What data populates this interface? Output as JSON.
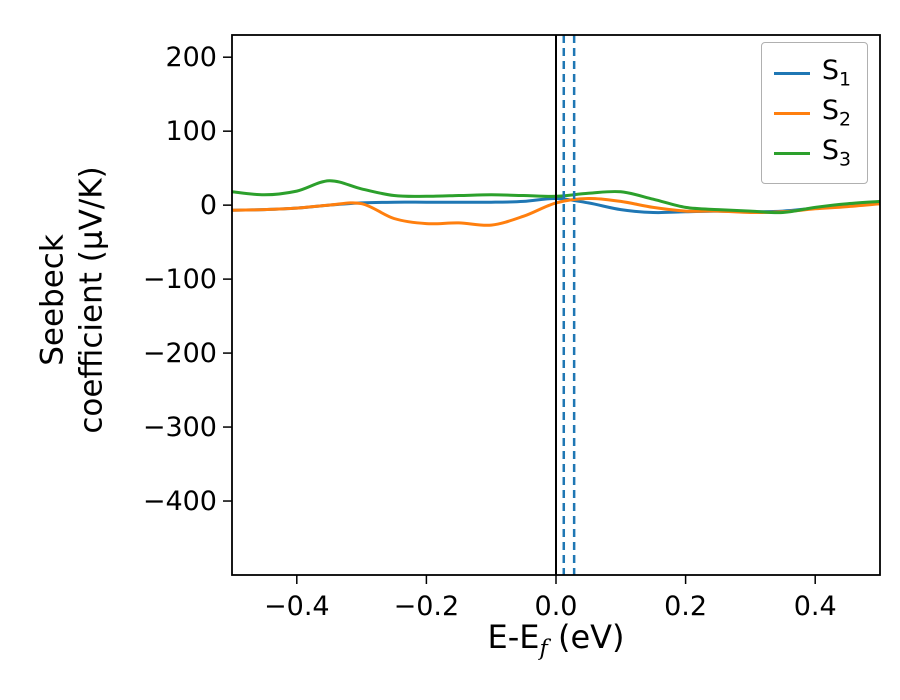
{
  "figure": {
    "background": "#ffffff"
  },
  "chart_data": {
    "type": "line",
    "title": "",
    "xlabel_parts": {
      "main": "E-E",
      "sub": "f",
      "unit": " (eV)"
    },
    "ylabel_lines": [
      "Seebeck",
      "coefficient  (μV/K)"
    ],
    "xlim": [
      -0.5,
      0.5
    ],
    "ylim": [
      -500,
      230
    ],
    "grid": false,
    "legend_position": "upper right",
    "xticks": [
      {
        "v": -0.4,
        "label": "−0.4"
      },
      {
        "v": -0.2,
        "label": "−0.2"
      },
      {
        "v": 0.0,
        "label": "0.0"
      },
      {
        "v": 0.2,
        "label": "0.2"
      },
      {
        "v": 0.4,
        "label": "0.4"
      }
    ],
    "yticks": [
      {
        "v": 200,
        "label": "200"
      },
      {
        "v": 100,
        "label": "100"
      },
      {
        "v": 0,
        "label": "0"
      },
      {
        "v": -100,
        "label": "−100"
      },
      {
        "v": -200,
        "label": "−200"
      },
      {
        "v": -300,
        "label": "−300"
      },
      {
        "v": -400,
        "label": "−400"
      }
    ],
    "x": [
      -0.5,
      -0.45,
      -0.4,
      -0.35,
      -0.3,
      -0.25,
      -0.2,
      -0.15,
      -0.1,
      -0.05,
      0.0,
      0.05,
      0.1,
      0.15,
      0.2,
      0.25,
      0.3,
      0.35,
      0.4,
      0.45,
      0.5
    ],
    "series": [
      {
        "name": "S",
        "sub": "1",
        "color": "#1f77b4",
        "values": [
          -7,
          -6,
          -4,
          0,
          3,
          4,
          4,
          4,
          4,
          5,
          9,
          3,
          -6,
          -10,
          -9,
          -8,
          -9,
          -8,
          -4,
          -1,
          3
        ]
      },
      {
        "name": "S",
        "sub": "2",
        "color": "#ff7f0e",
        "values": [
          -7,
          -6,
          -4,
          0,
          2,
          -18,
          -25,
          -24,
          -27,
          -15,
          3,
          9,
          5,
          -3,
          -8,
          -8,
          -10,
          -9,
          -5,
          -2,
          2
        ]
      },
      {
        "name": "S",
        "sub": "3",
        "color": "#2ca02c",
        "values": [
          18,
          14,
          19,
          33,
          22,
          13,
          12,
          13,
          14,
          13,
          12,
          16,
          18,
          8,
          -3,
          -6,
          -8,
          -10,
          -3,
          2,
          5
        ]
      }
    ],
    "vlines": [
      {
        "x": 0.0,
        "color": "#000000",
        "style": "solid",
        "width": 2
      },
      {
        "x": 0.012,
        "color": "#1f77b4",
        "style": "dashed",
        "width": 2.5
      },
      {
        "x": 0.028,
        "color": "#1f77b4",
        "style": "dashed",
        "width": 2.5
      }
    ]
  }
}
